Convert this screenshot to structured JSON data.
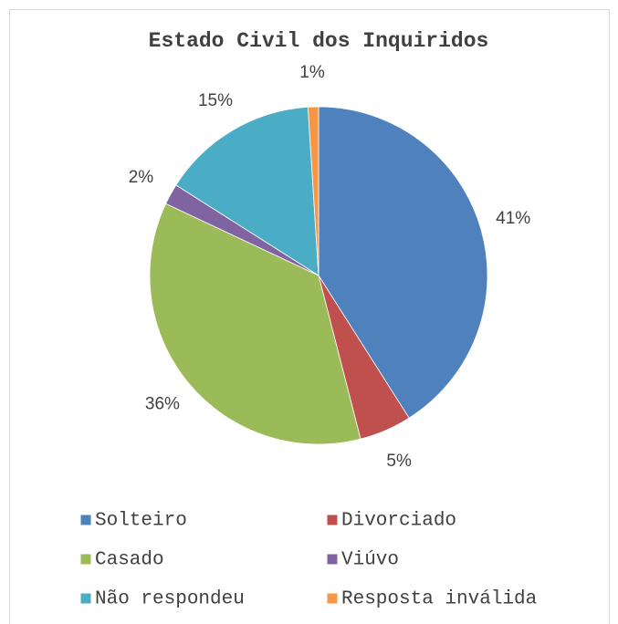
{
  "chart_data": {
    "type": "pie",
    "title": "Estado Civil dos Inquiridos",
    "categories": [
      "Solteiro",
      "Divorciado",
      "Casado",
      "Viúvo",
      "Não respondeu",
      "Resposta inválida"
    ],
    "values": [
      41,
      5,
      36,
      2,
      15,
      1
    ],
    "value_labels": [
      "41%",
      "5%",
      "36%",
      "2%",
      "15%",
      "1%"
    ],
    "colors": [
      "#4f81bd",
      "#c0504d",
      "#9bbb59",
      "#8064a2",
      "#4bacc6",
      "#f79646"
    ],
    "legend": "bottom"
  }
}
